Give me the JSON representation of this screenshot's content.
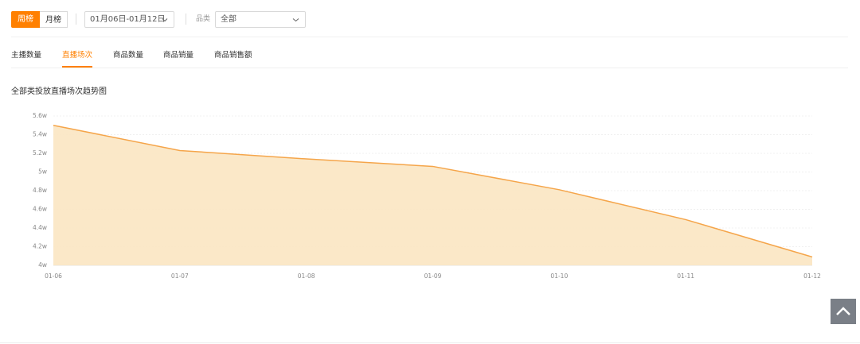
{
  "toolbar": {
    "tabs": [
      "周榜",
      "月榜"
    ],
    "date_range": "01月06日-01月12日",
    "category_label": "品类",
    "category_value": "全部"
  },
  "metric_tabs": [
    "主播数量",
    "直播场次",
    "商品数量",
    "商品销量",
    "商品销售额"
  ],
  "chart_data": {
    "type": "area",
    "title": "全部类投放直播场次趋势图",
    "categories": [
      "01-06",
      "01-07",
      "01-08",
      "01-09",
      "01-10",
      "01-11",
      "01-12"
    ],
    "values": [
      55000,
      52300,
      51400,
      50600,
      48100,
      44900,
      40900
    ],
    "color": "#f5a54a",
    "fill": "#fbe6c2",
    "ylim": [
      40000,
      56000
    ],
    "yticks": [
      {
        "value": 40000,
        "label": "4w"
      },
      {
        "value": 42000,
        "label": "4.2w"
      },
      {
        "value": 44000,
        "label": "4.4w"
      },
      {
        "value": 46000,
        "label": "4.6w"
      },
      {
        "value": 48000,
        "label": "4.8w"
      },
      {
        "value": 50000,
        "label": "5w"
      },
      {
        "value": 52000,
        "label": "5.2w"
      },
      {
        "value": 54000,
        "label": "5.4w"
      },
      {
        "value": 56000,
        "label": "5.6w"
      }
    ],
    "grid": true
  }
}
